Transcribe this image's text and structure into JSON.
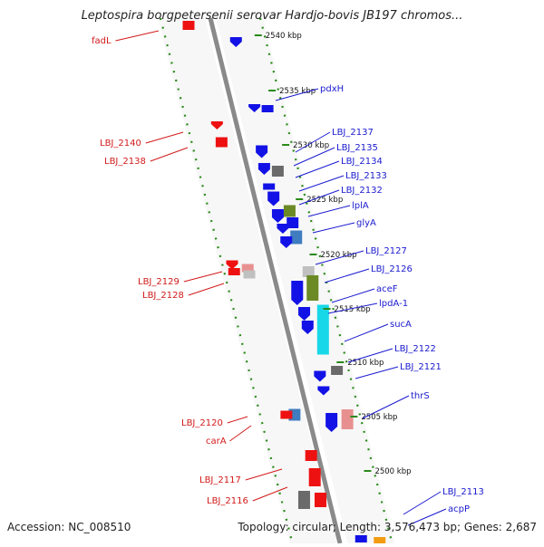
{
  "title": "Leptospira borgpetersenii serovar Hardjo-bovis JB197 chromos...",
  "footer": {
    "accession": "Accession: NC_008510",
    "summary": "Topology: circular; Length: 3,576,473 bp; Genes: 2,687"
  },
  "colors": {
    "blue": "#1212e6",
    "red": "#ee1111",
    "grey": "#6a6a6a",
    "olive": "#6b8a25",
    "steel": "#3f7cc0",
    "cyan": "#18d8e8",
    "pink": "#e89090",
    "lightgrey": "#c0c0c0",
    "orange": "#f39c12",
    "tick_dots": "#2a8a1a",
    "backbone": "#8a8a8a"
  },
  "scale_labels": [
    "2540 kbp",
    "2535 kbp",
    "2530 kbp",
    "2525 kbp",
    "2520 kbp",
    "2515 kbp",
    "2510 kbp",
    "2505 kbp",
    "2500 kbp"
  ],
  "labels_right": [
    "pdxH",
    "LBJ_2137",
    "LBJ_2135",
    "LBJ_2134",
    "LBJ_2133",
    "LBJ_2132",
    "lplA",
    "glyA",
    "LBJ_2127",
    "LBJ_2126",
    "aceF",
    "lpdA-1",
    "sucA",
    "LBJ_2122",
    "LBJ_2121",
    "thrS",
    "LBJ_2113",
    "acpP"
  ],
  "labels_left": [
    "fadL",
    "LBJ_2140",
    "LBJ_2138",
    "LBJ_2129",
    "LBJ_2128",
    "LBJ_2120",
    "carA",
    "LBJ_2117",
    "LBJ_2116"
  ]
}
